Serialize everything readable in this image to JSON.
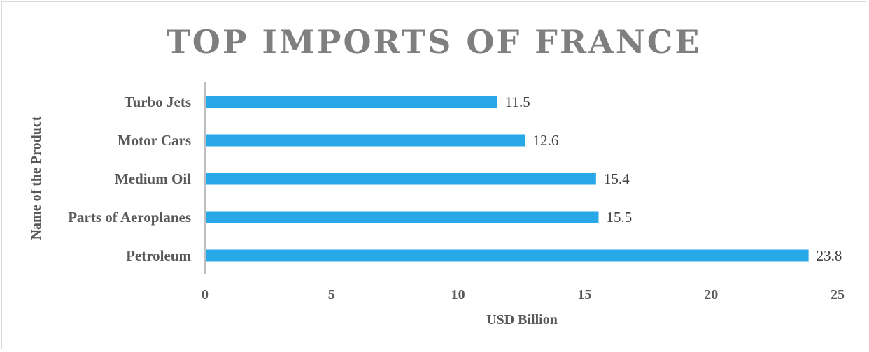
{
  "chart_data": {
    "type": "bar",
    "orientation": "horizontal",
    "title": "TOP IMPORTS OF FRANCE",
    "xlabel": "USD Billion",
    "ylabel": "Name of the Product",
    "categories": [
      "Turbo Jets",
      "Motor Cars",
      "Medium Oil",
      "Parts of Aeroplanes",
      "Petroleum"
    ],
    "values": [
      11.5,
      12.6,
      15.4,
      15.5,
      23.8
    ],
    "xlim": [
      0,
      25
    ],
    "xticks": [
      0,
      5,
      10,
      15,
      20,
      25
    ],
    "grid": false,
    "bar_color": "#29a8e8",
    "axis_color": "#bfbfbf"
  }
}
